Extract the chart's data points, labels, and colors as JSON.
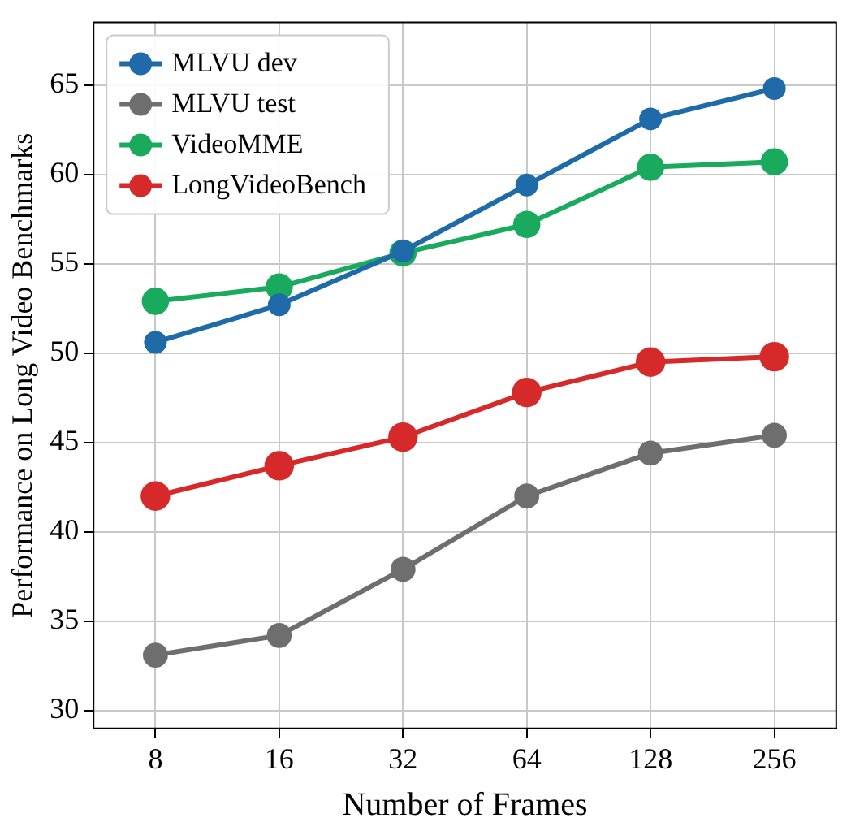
{
  "chart_data": {
    "type": "line",
    "xlabel": "Number of Frames",
    "ylabel": "Performance on Long Video Benchmarks",
    "categories": [
      "8",
      "16",
      "32",
      "64",
      "128",
      "256"
    ],
    "series": [
      {
        "name": "MLVU dev",
        "color": "#1f6aa8",
        "values": [
          50.6,
          52.7,
          55.7,
          59.4,
          63.1,
          64.8
        ]
      },
      {
        "name": "MLVU test",
        "color": "#6e6e6e",
        "values": [
          33.1,
          34.2,
          37.9,
          42.0,
          44.4,
          45.4
        ]
      },
      {
        "name": "VideoMME",
        "color": "#1aaa5e",
        "values": [
          52.9,
          53.7,
          55.6,
          57.2,
          60.4,
          60.7
        ]
      },
      {
        "name": "LongVideoBench",
        "color": "#d62a2a",
        "values": [
          42.0,
          43.7,
          45.3,
          47.8,
          49.5,
          49.8
        ]
      }
    ],
    "ylim": [
      29,
      68.5
    ],
    "yticks": [
      30,
      35,
      40,
      45,
      50,
      55,
      60,
      65
    ],
    "grid": true,
    "legend": "top left",
    "marker": "circle",
    "line_style": "solid"
  }
}
